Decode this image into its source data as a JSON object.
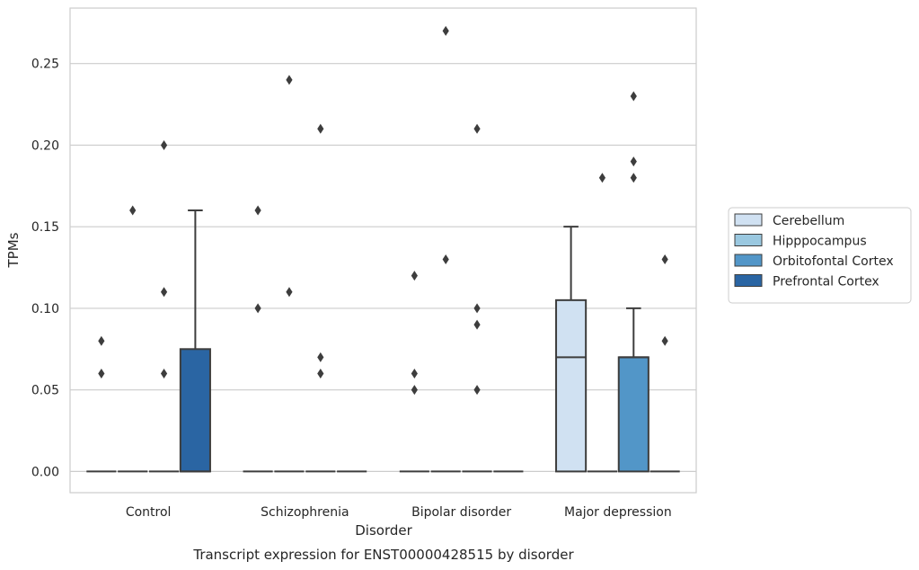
{
  "chart_data": {
    "type": "box",
    "title": "Transcript expression for ENST00000428515 by disorder",
    "xlabel": "Disorder",
    "ylabel": "TPMs",
    "ylim": [
      -0.013,
      0.284
    ],
    "yticks": [
      "0.00",
      "0.05",
      "0.10",
      "0.15",
      "0.20",
      "0.25"
    ],
    "grid": true,
    "legend_position": "right",
    "categories": [
      "Control",
      "Schizophrenia",
      "Bipolar disorder",
      "Major depression"
    ],
    "series": [
      {
        "name": "Cerebellum",
        "color": "#d0e1f2",
        "boxes": [
          {
            "q1": 0,
            "median": 0,
            "q3": 0,
            "whisker_low": 0,
            "whisker_high": 0,
            "outliers": [
              0.06,
              0.08
            ]
          },
          {
            "q1": 0,
            "median": 0,
            "q3": 0,
            "whisker_low": 0,
            "whisker_high": 0,
            "outliers": [
              0.1,
              0.16
            ]
          },
          {
            "q1": 0,
            "median": 0,
            "q3": 0,
            "whisker_low": 0,
            "whisker_high": 0,
            "outliers": [
              0.05,
              0.06,
              0.12
            ]
          },
          {
            "q1": 0,
            "median": 0.07,
            "q3": 0.105,
            "whisker_low": 0,
            "whisker_high": 0.15,
            "outliers": []
          }
        ]
      },
      {
        "name": "Hipppocampus",
        "color": "#9ac8e0",
        "boxes": [
          {
            "q1": 0,
            "median": 0,
            "q3": 0,
            "whisker_low": 0,
            "whisker_high": 0,
            "outliers": [
              0.16
            ]
          },
          {
            "q1": 0,
            "median": 0,
            "q3": 0,
            "whisker_low": 0,
            "whisker_high": 0,
            "outliers": [
              0.11,
              0.24
            ]
          },
          {
            "q1": 0,
            "median": 0,
            "q3": 0,
            "whisker_low": 0,
            "whisker_high": 0,
            "outliers": [
              0.13,
              0.27
            ]
          },
          {
            "q1": 0,
            "median": 0,
            "q3": 0,
            "whisker_low": 0,
            "whisker_high": 0,
            "outliers": [
              0.18
            ]
          }
        ]
      },
      {
        "name": "Orbitofontal Cortex",
        "color": "#5296c8",
        "boxes": [
          {
            "q1": 0,
            "median": 0,
            "q3": 0,
            "whisker_low": 0,
            "whisker_high": 0,
            "outliers": [
              0.06,
              0.11,
              0.2
            ]
          },
          {
            "q1": 0,
            "median": 0,
            "q3": 0,
            "whisker_low": 0,
            "whisker_high": 0,
            "outliers": [
              0.06,
              0.07,
              0.21
            ]
          },
          {
            "q1": 0,
            "median": 0,
            "q3": 0,
            "whisker_low": 0,
            "whisker_high": 0,
            "outliers": [
              0.05,
              0.09,
              0.1,
              0.21
            ]
          },
          {
            "q1": 0,
            "median": 0.07,
            "q3": 0.07,
            "whisker_low": 0,
            "whisker_high": 0.1,
            "outliers": [
              0.18,
              0.19,
              0.23
            ]
          }
        ]
      },
      {
        "name": "Prefrontal Cortex",
        "color": "#2a65a3",
        "boxes": [
          {
            "q1": 0,
            "median": 0,
            "q3": 0.075,
            "whisker_low": 0,
            "whisker_high": 0.16,
            "outliers": []
          },
          {
            "q1": 0,
            "median": 0,
            "q3": 0,
            "whisker_low": 0,
            "whisker_high": 0,
            "outliers": []
          },
          {
            "q1": 0,
            "median": 0,
            "q3": 0,
            "whisker_low": 0,
            "whisker_high": 0,
            "outliers": []
          },
          {
            "q1": 0,
            "median": 0,
            "q3": 0,
            "whisker_low": 0,
            "whisker_high": 0,
            "outliers": [
              0.08,
              0.13
            ]
          }
        ]
      }
    ]
  }
}
